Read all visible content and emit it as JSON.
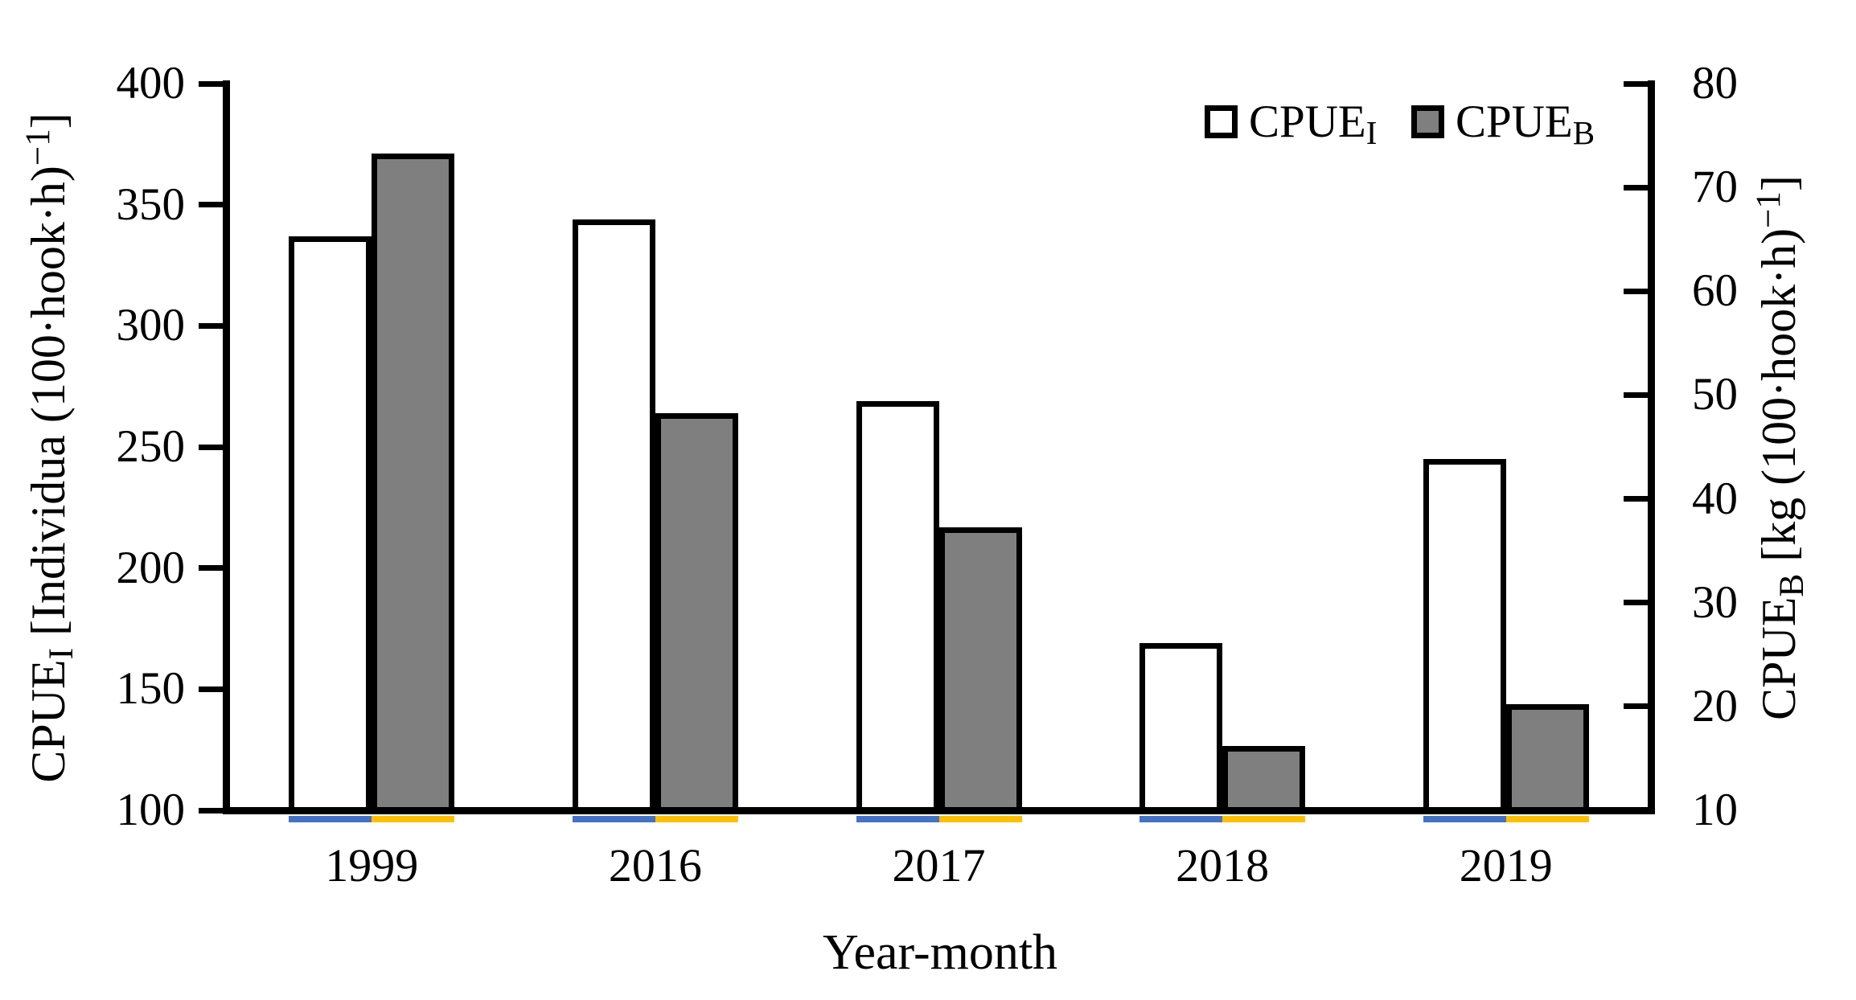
{
  "chart_data": {
    "type": "bar",
    "title": "",
    "categories": [
      "1999",
      "2016",
      "2017",
      "2018",
      "2019"
    ],
    "series": [
      {
        "name": "CPUE_I",
        "label_rich": "CPUE~I~",
        "axis": "left",
        "fill": "#FFFFFF",
        "border_color": "#000000",
        "values": [
          336,
          343,
          268,
          168,
          244
        ]
      },
      {
        "name": "CPUE_B",
        "label_rich": "CPUE~B~",
        "axis": "right",
        "fill": "#7F7F7F",
        "border_color": "#000000",
        "values": [
          73,
          48,
          37,
          16,
          20
        ]
      }
    ],
    "left_axis": {
      "label_rich": "CPUE~I~ [Individua (100·hook·h)^−1^]",
      "min": 100,
      "max": 400,
      "step": 50,
      "ticks": [
        400,
        350,
        300,
        250,
        200,
        150,
        100
      ]
    },
    "right_axis": {
      "label_rich": "CPUE~B~ [kg (100·hook·h)^−1^]",
      "min": 10,
      "max": 80,
      "step": 10,
      "ticks": [
        80,
        70,
        60,
        50,
        40,
        30,
        20,
        10
      ]
    },
    "xlabel": "Year-month",
    "grid": false,
    "legend": {
      "position": "top-right",
      "items": [
        {
          "label_rich": "CPUE~I~",
          "fill": "#FFFFFF"
        },
        {
          "label_rich": "CPUE~B~",
          "fill": "#7F7F7F"
        }
      ]
    },
    "baseline_markers": {
      "under_left_series_color": "#4472C4",
      "under_right_series_color": "#FFC000"
    }
  }
}
